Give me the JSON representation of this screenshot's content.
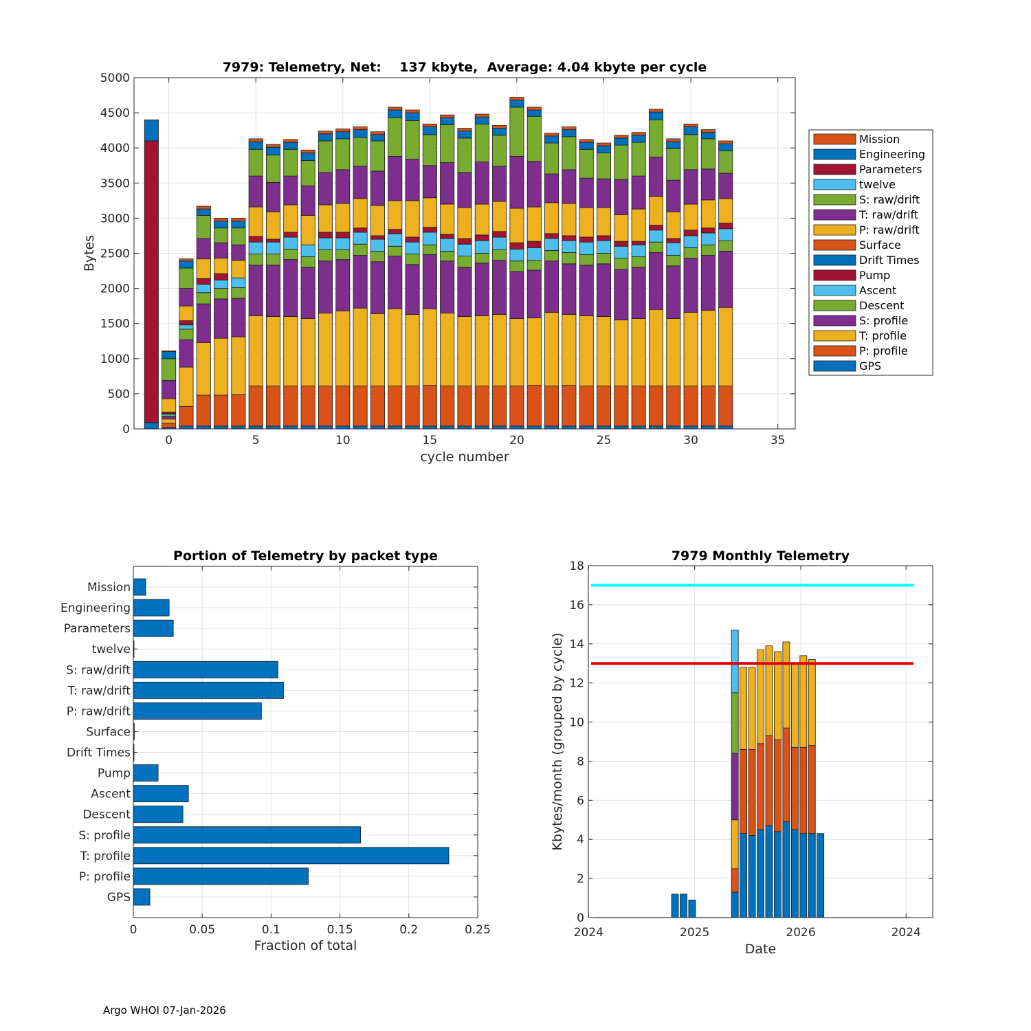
{
  "footer": {
    "text": "Argo WHOI 07-Jan-2026"
  },
  "chart_data": [
    {
      "type": "bar",
      "stacked": true,
      "title": "7979: Telemetry, Net:    137 kbyte,  Average: 4.04 kbyte per cycle",
      "xlabel": "cycle number",
      "ylabel": "Bytes",
      "xlim": [
        -2,
        36
      ],
      "ylim": [
        0,
        5000
      ],
      "xticks": [
        0,
        5,
        10,
        15,
        20,
        25,
        30,
        35
      ],
      "yticks": [
        0,
        500,
        1000,
        1500,
        2000,
        2500,
        3000,
        3500,
        4000,
        4500,
        5000
      ],
      "grid": true,
      "legend_position": "outside-right",
      "legend": [
        "Mission",
        "Engineering",
        "Parameters",
        "twelve",
        "S: raw/drift",
        "T: raw/drift",
        "P: raw/drift",
        "Surface",
        "Drift Times",
        "Pump",
        "Ascent",
        "Descent",
        "S: profile",
        "T: profile",
        "P: profile",
        "GPS"
      ],
      "series_stack_order": [
        "GPS",
        "P: profile",
        "T: profile",
        "S: profile",
        "Descent",
        "Ascent",
        "Pump",
        "Drift Times",
        "Surface",
        "P: raw/drift",
        "T: raw/drift",
        "S: raw/drift",
        "twelve",
        "Parameters",
        "Engineering",
        "Mission"
      ],
      "colors": {
        "GPS": "#0072BD",
        "P: profile": "#D95319",
        "T: profile": "#EDB120",
        "S: profile": "#7E2F8E",
        "Descent": "#77AC30",
        "Ascent": "#4DBEEE",
        "Pump": "#A2142F",
        "Drift Times": "#0072BD",
        "Surface": "#D95319",
        "P: raw/drift": "#EDB120",
        "T: raw/drift": "#7E2F8E",
        "S: raw/drift": "#77AC30",
        "twelve": "#4DBEEE",
        "Parameters": "#A2142F",
        "Engineering": "#0072BD",
        "Mission": "#D95319"
      },
      "cycles": [
        -1,
        0,
        1,
        2,
        3,
        4,
        5,
        6,
        7,
        8,
        9,
        10,
        11,
        12,
        13,
        14,
        15,
        16,
        17,
        18,
        19,
        20,
        21,
        22,
        23,
        24,
        25,
        26,
        27,
        28,
        29,
        30,
        31,
        32
      ],
      "segments": [
        {
          "GPS": 90,
          "Parameters": 4010,
          "Engineering": 300
        },
        {
          "GPS": 20,
          "P: profile": 60,
          "T: profile": 60,
          "S: profile": 40,
          "Descent": 20,
          "Ascent": 20,
          "Pump": 20,
          "P: raw/drift": 190,
          "T: raw/drift": 260,
          "S: raw/drift": 310,
          "Engineering": 100,
          "Mission": 10
        },
        {
          "GPS": 40,
          "P: profile": 280,
          "T: profile": 560,
          "S: profile": 390,
          "Descent": 150,
          "Ascent": 60,
          "Pump": 60,
          "P: raw/drift": 210,
          "T: raw/drift": 250,
          "S: raw/drift": 290,
          "Engineering": 100,
          "Mission": 30
        },
        {
          "GPS": 40,
          "P: profile": 440,
          "T: profile": 750,
          "S: profile": 550,
          "Descent": 160,
          "Ascent": 120,
          "Pump": 80,
          "P: raw/drift": 280,
          "T: raw/drift": 290,
          "S: raw/drift": 330,
          "Engineering": 90,
          "Mission": 40
        },
        {
          "GPS": 40,
          "P: profile": 440,
          "T: profile": 810,
          "S: profile": 560,
          "Descent": 150,
          "Ascent": 120,
          "Pump": 90,
          "P: raw/drift": 220,
          "T: raw/drift": 220,
          "S: raw/drift": 210,
          "Engineering": 100,
          "Mission": 40
        },
        {
          "GPS": 40,
          "P: profile": 450,
          "T: profile": 820,
          "S: profile": 550,
          "Descent": 150,
          "Ascent": 140,
          "Pump": 0,
          "P: raw/drift": 250,
          "T: raw/drift": 220,
          "S: raw/drift": 240,
          "Engineering": 100,
          "Mission": 40
        },
        {
          "GPS": 40,
          "P: profile": 570,
          "T: profile": 1000,
          "S: profile": 720,
          "Descent": 160,
          "Ascent": 170,
          "Pump": 80,
          "P: raw/drift": 420,
          "T: raw/drift": 440,
          "S: raw/drift": 380,
          "Engineering": 110,
          "Mission": 40
        },
        {
          "GPS": 40,
          "P: profile": 570,
          "T: profile": 990,
          "S: profile": 730,
          "Descent": 160,
          "Ascent": 170,
          "Pump": 40,
          "P: raw/drift": 390,
          "T: raw/drift": 420,
          "S: raw/drift": 390,
          "Engineering": 110,
          "Mission": 40
        },
        {
          "GPS": 40,
          "P: profile": 570,
          "T: profile": 990,
          "S: profile": 810,
          "Descent": 150,
          "Ascent": 170,
          "Pump": 70,
          "P: raw/drift": 390,
          "T: raw/drift": 410,
          "S: raw/drift": 380,
          "Engineering": 100,
          "Mission": 40
        },
        {
          "GPS": 40,
          "P: profile": 570,
          "T: profile": 960,
          "S: profile": 730,
          "Descent": 150,
          "Ascent": 170,
          "Pump": 0,
          "P: raw/drift": 420,
          "T: raw/drift": 420,
          "S: raw/drift": 360,
          "Engineering": 110,
          "Mission": 40
        },
        {
          "GPS": 40,
          "P: profile": 570,
          "T: profile": 1040,
          "S: profile": 740,
          "Descent": 160,
          "Ascent": 170,
          "Pump": 80,
          "P: raw/drift": 390,
          "T: raw/drift": 460,
          "S: raw/drift": 450,
          "Engineering": 100,
          "Mission": 40
        },
        {
          "GPS": 40,
          "P: profile": 570,
          "T: profile": 1070,
          "S: profile": 730,
          "Descent": 140,
          "Ascent": 170,
          "Pump": 80,
          "P: raw/drift": 410,
          "T: raw/drift": 480,
          "S: raw/drift": 440,
          "Engineering": 100,
          "Mission": 40
        },
        {
          "GPS": 40,
          "P: profile": 570,
          "T: profile": 1110,
          "S: profile": 750,
          "Descent": 160,
          "Ascent": 170,
          "Pump": 60,
          "P: raw/drift": 420,
          "T: raw/drift": 460,
          "S: raw/drift": 410,
          "Engineering": 110,
          "Mission": 40
        },
        {
          "GPS": 40,
          "P: profile": 570,
          "T: profile": 1030,
          "S: profile": 740,
          "Descent": 150,
          "Ascent": 170,
          "Pump": 50,
          "P: raw/drift": 430,
          "T: raw/drift": 490,
          "S: raw/drift": 430,
          "Engineering": 90,
          "Mission": 40
        },
        {
          "GPS": 40,
          "P: profile": 570,
          "T: profile": 1100,
          "S: profile": 750,
          "Descent": 140,
          "Ascent": 180,
          "Pump": 60,
          "P: raw/drift": 410,
          "T: raw/drift": 630,
          "S: raw/drift": 550,
          "Engineering": 110,
          "Mission": 40
        },
        {
          "GPS": 40,
          "P: profile": 570,
          "T: profile": 1020,
          "S: profile": 710,
          "Descent": 150,
          "Ascent": 170,
          "Pump": 70,
          "P: raw/drift": 520,
          "T: raw/drift": 590,
          "S: raw/drift": 550,
          "Engineering": 110,
          "Mission": 40
        },
        {
          "GPS": 40,
          "P: profile": 580,
          "T: profile": 1090,
          "S: profile": 770,
          "Descent": 140,
          "Ascent": 180,
          "Pump": 70,
          "P: raw/drift": 420,
          "T: raw/drift": 460,
          "S: raw/drift": 440,
          "Engineering": 110,
          "Mission": 40
        },
        {
          "GPS": 40,
          "P: profile": 570,
          "T: profile": 1040,
          "S: profile": 740,
          "Descent": 140,
          "Ascent": 180,
          "Pump": 60,
          "P: raw/drift": 430,
          "T: raw/drift": 590,
          "S: raw/drift": 540,
          "Engineering": 100,
          "Mission": 40
        },
        {
          "GPS": 40,
          "P: profile": 570,
          "T: profile": 990,
          "S: profile": 700,
          "Descent": 160,
          "Ascent": 170,
          "Pump": 80,
          "P: raw/drift": 440,
          "T: raw/drift": 500,
          "S: raw/drift": 490,
          "Engineering": 100,
          "Mission": 40
        },
        {
          "GPS": 40,
          "P: profile": 570,
          "T: profile": 1000,
          "S: profile": 750,
          "Descent": 140,
          "Ascent": 180,
          "Pump": 80,
          "P: raw/drift": 440,
          "T: raw/drift": 600,
          "S: raw/drift": 540,
          "Engineering": 100,
          "Mission": 40
        },
        {
          "GPS": 40,
          "P: profile": 570,
          "T: profile": 1020,
          "S: profile": 770,
          "Descent": 150,
          "Ascent": 180,
          "Pump": 80,
          "P: raw/drift": 430,
          "T: raw/drift": 500,
          "S: raw/drift": 440,
          "Engineering": 100,
          "Mission": 40
        },
        {
          "GPS": 40,
          "P: profile": 570,
          "T: profile": 960,
          "S: profile": 670,
          "Descent": 150,
          "Ascent": 170,
          "Pump": 90,
          "P: raw/drift": 490,
          "T: raw/drift": 740,
          "S: raw/drift": 700,
          "Engineering": 100,
          "Mission": 40
        },
        {
          "GPS": 40,
          "P: profile": 580,
          "T: profile": 960,
          "S: profile": 680,
          "Descent": 140,
          "Ascent": 180,
          "Pump": 90,
          "P: raw/drift": 490,
          "T: raw/drift": 650,
          "S: raw/drift": 640,
          "Engineering": 90,
          "Mission": 40
        },
        {
          "GPS": 40,
          "P: profile": 570,
          "T: profile": 1050,
          "S: profile": 730,
          "Descent": 150,
          "Ascent": 170,
          "Pump": 70,
          "P: raw/drift": 440,
          "T: raw/drift": 410,
          "S: raw/drift": 440,
          "Engineering": 100,
          "Mission": 40
        },
        {
          "GPS": 40,
          "P: profile": 580,
          "T: profile": 1010,
          "S: profile": 720,
          "Descent": 160,
          "Ascent": 170,
          "Pump": 70,
          "P: raw/drift": 460,
          "T: raw/drift": 480,
          "S: raw/drift": 470,
          "Engineering": 100,
          "Mission": 40
        },
        {
          "GPS": 40,
          "P: profile": 570,
          "T: profile": 1000,
          "S: profile": 720,
          "Descent": 150,
          "Ascent": 180,
          "Pump": 70,
          "P: raw/drift": 420,
          "T: raw/drift": 420,
          "S: raw/drift": 410,
          "Engineering": 100,
          "Mission": 40
        },
        {
          "GPS": 40,
          "P: profile": 570,
          "T: profile": 990,
          "S: profile": 750,
          "Descent": 150,
          "Ascent": 180,
          "Pump": 70,
          "P: raw/drift": 400,
          "T: raw/drift": 410,
          "S: raw/drift": 370,
          "Engineering": 100,
          "Mission": 40
        },
        {
          "GPS": 40,
          "P: profile": 570,
          "T: profile": 940,
          "S: profile": 720,
          "Descent": 160,
          "Ascent": 170,
          "Pump": 70,
          "P: raw/drift": 380,
          "T: raw/drift": 500,
          "S: raw/drift": 490,
          "Engineering": 100,
          "Mission": 40
        },
        {
          "GPS": 40,
          "P: profile": 570,
          "T: profile": 960,
          "S: profile": 730,
          "Descent": 150,
          "Ascent": 170,
          "Pump": 50,
          "P: raw/drift": 460,
          "T: raw/drift": 470,
          "S: raw/drift": 480,
          "Engineering": 100,
          "Mission": 40
        },
        {
          "GPS": 40,
          "P: profile": 570,
          "T: profile": 1090,
          "S: profile": 810,
          "Descent": 150,
          "Ascent": 170,
          "Pump": 70,
          "P: raw/drift": 410,
          "T: raw/drift": 560,
          "S: raw/drift": 530,
          "Engineering": 110,
          "Mission": 40
        },
        {
          "GPS": 40,
          "P: profile": 570,
          "T: profile": 960,
          "S: profile": 750,
          "Descent": 150,
          "Ascent": 180,
          "Pump": 60,
          "P: raw/drift": 380,
          "T: raw/drift": 450,
          "S: raw/drift": 450,
          "Engineering": 100,
          "Mission": 40
        },
        {
          "GPS": 40,
          "P: profile": 570,
          "T: profile": 1050,
          "S: profile": 770,
          "Descent": 150,
          "Ascent": 170,
          "Pump": 80,
          "P: raw/drift": 370,
          "T: raw/drift": 490,
          "S: raw/drift": 500,
          "Engineering": 110,
          "Mission": 40
        },
        {
          "GPS": 40,
          "P: profile": 570,
          "T: profile": 1080,
          "S: profile": 780,
          "Descent": 150,
          "Ascent": 170,
          "Pump": 70,
          "P: raw/drift": 400,
          "T: raw/drift": 440,
          "S: raw/drift": 430,
          "Engineering": 90,
          "Mission": 40
        },
        {
          "GPS": 40,
          "P: profile": 570,
          "T: profile": 1120,
          "S: profile": 800,
          "Descent": 150,
          "Ascent": 170,
          "Pump": 80,
          "P: raw/drift": 350,
          "T: raw/drift": 360,
          "S: raw/drift": 320,
          "Engineering": 100,
          "Mission": 40
        }
      ]
    },
    {
      "type": "bar",
      "orientation": "horizontal",
      "title": "Portion of Telemetry by packet type",
      "xlabel": "Fraction of total",
      "ylabel": "",
      "xlim": [
        0,
        0.25
      ],
      "xticks": [
        0,
        0.05,
        0.1,
        0.15,
        0.2,
        0.25
      ],
      "xtick_labels": [
        "0",
        "0.05",
        "0.1",
        "0.15",
        "0.2",
        "0.25"
      ],
      "grid": true,
      "color": "#0072BD",
      "categories": [
        "Mission",
        "Engineering",
        "Parameters",
        "twelve",
        "S: raw/drift",
        "T: raw/drift",
        "P: raw/drift",
        "Surface",
        "Drift Times",
        "Pump",
        "Ascent",
        "Descent",
        "S: profile",
        "T: profile",
        "P: profile",
        "GPS"
      ],
      "values": [
        0.009,
        0.026,
        0.029,
        0.0005,
        0.105,
        0.109,
        0.093,
        0.0007,
        0.0005,
        0.018,
        0.04,
        0.036,
        0.165,
        0.229,
        0.127,
        0.012
      ]
    },
    {
      "type": "bar",
      "stacked": true,
      "title": "7979 Monthly Telemetry",
      "xlabel": "Date",
      "ylabel": "Kbytes/month (grouped by cycle)",
      "ylim": [
        0,
        18
      ],
      "yticks": [
        0,
        2,
        4,
        6,
        8,
        10,
        12,
        14,
        16,
        18
      ],
      "xtick_labels": [
        "2024",
        "2025",
        "2026",
        "2024"
      ],
      "grid": true,
      "reference_lines": [
        {
          "name": "upper-limit",
          "value": 17,
          "color": "#00FFFF"
        },
        {
          "name": "lower-limit",
          "value": 13,
          "color": "#E00000"
        }
      ],
      "stack_colors": [
        "#0072BD",
        "#D95319",
        "#EDB120",
        "#7E2F8E",
        "#77AC30",
        "#4DBEEE"
      ],
      "months": [
        [
          0
        ],
        [
          0
        ],
        [
          0
        ],
        [
          0
        ],
        [
          0
        ],
        [
          0
        ],
        [
          0
        ],
        [
          0
        ],
        [
          0
        ],
        [
          1.2
        ],
        [
          1.2
        ],
        [
          0.9
        ],
        [
          0
        ],
        [
          0
        ],
        [
          0
        ],
        [
          0
        ],
        [
          1.3,
          1.2,
          2.5,
          3.4,
          3.1,
          3.2
        ],
        [
          4.3,
          4.3,
          4.2
        ],
        [
          4.2,
          4.4,
          4.2
        ],
        [
          4.5,
          4.4,
          4.8
        ],
        [
          4.7,
          4.6,
          4.6
        ],
        [
          4.4,
          4.7,
          4.5
        ],
        [
          4.9,
          4.8,
          4.4
        ],
        [
          4.5,
          4.2,
          4.3
        ],
        [
          4.3,
          4.4,
          4.7
        ],
        [
          4.3,
          4.5,
          4.4
        ],
        [
          4.3
        ],
        [
          0
        ],
        [
          0
        ],
        [
          0
        ],
        [
          0
        ],
        [
          0
        ],
        [
          0
        ],
        [
          0
        ],
        [
          0
        ],
        [
          0
        ],
        [
          0
        ]
      ]
    }
  ]
}
